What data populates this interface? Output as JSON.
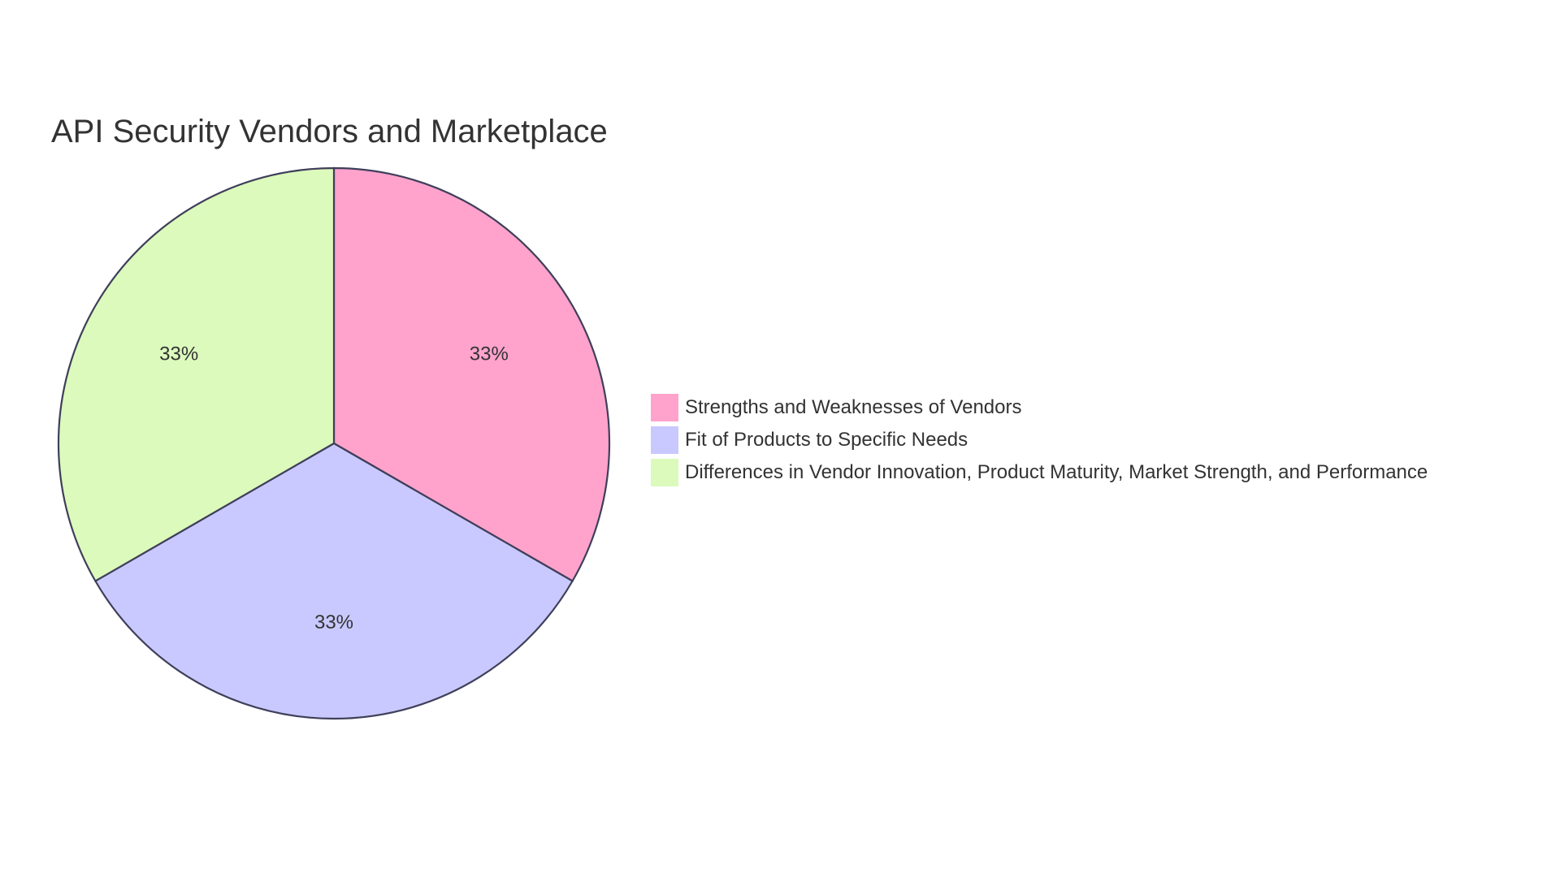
{
  "chart_data": {
    "type": "pie",
    "title": "API Security Vendors and Marketplace",
    "categories": [
      "Strengths and Weaknesses of Vendors",
      "Fit of Products to Specific Needs",
      "Differences in Vendor Innovation, Product Maturity, Market Strength, and Performance"
    ],
    "values": [
      33.33,
      33.33,
      33.33
    ],
    "slice_labels": [
      "33%",
      "33%",
      "33%"
    ],
    "colors": [
      "#ffa3cd",
      "#c9c9ff",
      "#dcfabc"
    ],
    "start_angle_deg": 0,
    "direction": "clockwise",
    "legend_position": "right"
  }
}
